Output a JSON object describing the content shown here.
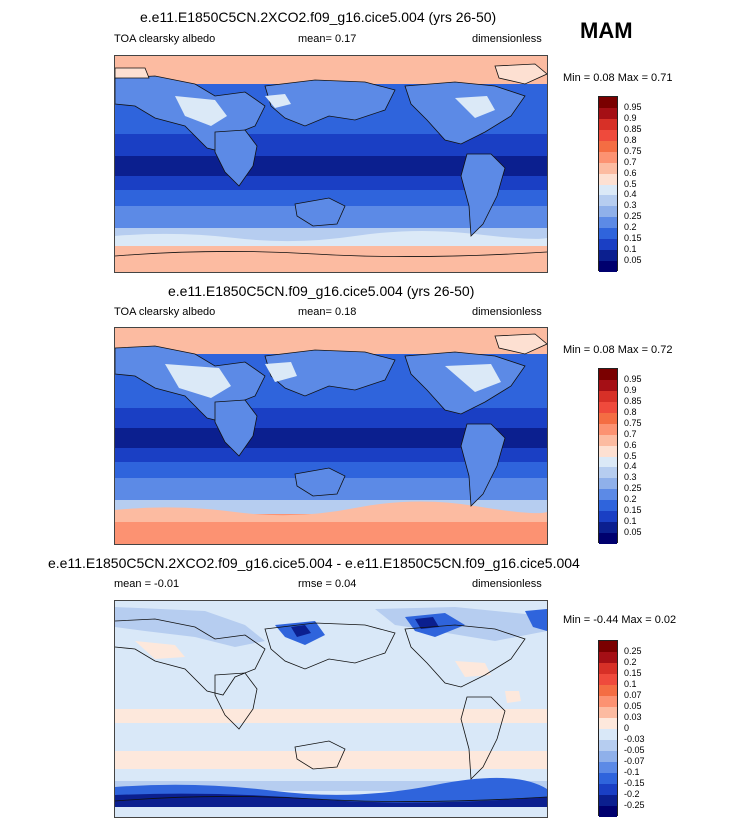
{
  "season": "MAM",
  "panels": [
    {
      "title": "e.e11.E1850C5CN.2XCO2.f09_g16.cice5.004 (yrs 26-50)",
      "left_label": "TOA clearsky albedo",
      "center_label": "mean=  0.17",
      "right_label": "dimensionless",
      "minmax": "Min =  0.08 Max =  0.71",
      "colorbar_labels": [
        "0.95",
        "0.9",
        "0.85",
        "0.8",
        "0.75",
        "0.7",
        "0.6",
        "0.5",
        "0.4",
        "0.3",
        "0.25",
        "0.2",
        "0.15",
        "0.1",
        "0.05"
      ],
      "colorbar_colors": [
        "#7a0000",
        "#a50f15",
        "#d73027",
        "#ef4a3c",
        "#f46d43",
        "#fc9272",
        "#fcbba1",
        "#fde0d2",
        "#dbe9f7",
        "#b6cdf0",
        "#8fb0ea",
        "#5c8ae6",
        "#2f64dc",
        "#1a3fc4",
        "#0b1f8f",
        "#00006e"
      ]
    },
    {
      "title": "e.e11.E1850C5CN.f09_g16.cice5.004 (yrs 26-50)",
      "left_label": "TOA clearsky albedo",
      "center_label": "mean=  0.18",
      "right_label": "dimensionless",
      "minmax": "Min =  0.08 Max =  0.72",
      "colorbar_labels": [
        "0.95",
        "0.9",
        "0.85",
        "0.8",
        "0.75",
        "0.7",
        "0.6",
        "0.5",
        "0.4",
        "0.3",
        "0.25",
        "0.2",
        "0.15",
        "0.1",
        "0.05"
      ],
      "colorbar_colors": [
        "#7a0000",
        "#a50f15",
        "#d73027",
        "#ef4a3c",
        "#f46d43",
        "#fc9272",
        "#fcbba1",
        "#fde0d2",
        "#dbe9f7",
        "#b6cdf0",
        "#8fb0ea",
        "#5c8ae6",
        "#2f64dc",
        "#1a3fc4",
        "#0b1f8f",
        "#00006e"
      ]
    },
    {
      "title": "e.e11.E1850C5CN.2XCO2.f09_g16.cice5.004 - e.e11.E1850C5CN.f09_g16.cice5.004",
      "left_label": "mean =  -0.01",
      "center_label": "rmse =  0.04",
      "right_label": "dimensionless",
      "minmax": "Min =  -0.44 Max =  0.02",
      "colorbar_labels": [
        "0.25",
        "0.2",
        "0.15",
        "0.1",
        "0.07",
        "0.05",
        "0.03",
        "0",
        "-0.03",
        "-0.05",
        "-0.07",
        "-0.1",
        "-0.15",
        "-0.2",
        "-0.25"
      ],
      "colorbar_colors": [
        "#7a0000",
        "#a50f15",
        "#d73027",
        "#ef4a3c",
        "#f46d43",
        "#fc9272",
        "#fcbba1",
        "#fde8dc",
        "#d9e8f8",
        "#b6cdf0",
        "#8fb0ea",
        "#5c8ae6",
        "#2f64dc",
        "#1a3fc4",
        "#0b1f8f",
        "#00006e"
      ]
    }
  ]
}
